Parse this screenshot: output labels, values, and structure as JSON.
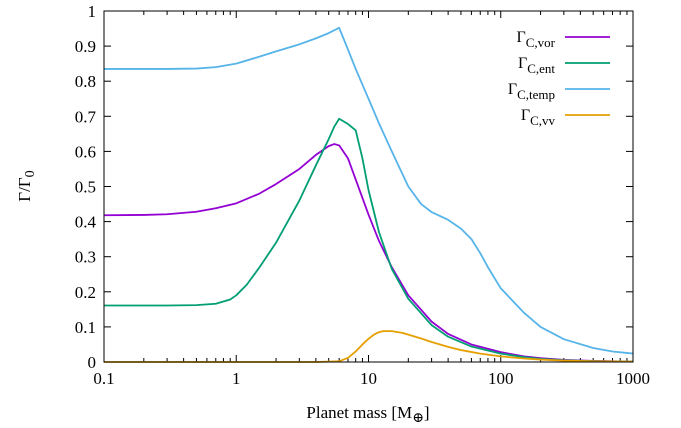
{
  "chart_data": {
    "type": "line",
    "xlabel": "Planet mass [M",
    "xlabel_sub": "⊕",
    "xlabel_close": "]",
    "ylabel": "Γ/Γ",
    "ylabel_sub": "0",
    "x_scale": "log",
    "xlim": [
      0.1,
      1000
    ],
    "ylim": [
      0,
      1
    ],
    "grid": false,
    "legend_position": "top-right",
    "x_ticks": [
      {
        "value": 0.1,
        "label": "0.1"
      },
      {
        "value": 1,
        "label": "1"
      },
      {
        "value": 10,
        "label": "10"
      },
      {
        "value": 100,
        "label": "100"
      },
      {
        "value": 1000,
        "label": "1000"
      }
    ],
    "y_ticks": [
      {
        "value": 0,
        "label": "0"
      },
      {
        "value": 0.1,
        "label": "0.1"
      },
      {
        "value": 0.2,
        "label": "0.2"
      },
      {
        "value": 0.3,
        "label": "0.3"
      },
      {
        "value": 0.4,
        "label": "0.4"
      },
      {
        "value": 0.5,
        "label": "0.5"
      },
      {
        "value": 0.6,
        "label": "0.6"
      },
      {
        "value": 0.7,
        "label": "0.7"
      },
      {
        "value": 0.8,
        "label": "0.8"
      },
      {
        "value": 0.9,
        "label": "0.9"
      },
      {
        "value": 1,
        "label": "1"
      }
    ],
    "series": [
      {
        "name": "Γ",
        "name_sub": "C,vor",
        "color": "#9400d3",
        "points": [
          [
            0.1,
            0.418
          ],
          [
            0.2,
            0.419
          ],
          [
            0.3,
            0.421
          ],
          [
            0.5,
            0.428
          ],
          [
            0.7,
            0.438
          ],
          [
            1,
            0.452
          ],
          [
            1.5,
            0.48
          ],
          [
            2,
            0.507
          ],
          [
            3,
            0.55
          ],
          [
            4,
            0.59
          ],
          [
            5,
            0.615
          ],
          [
            5.5,
            0.621
          ],
          [
            6,
            0.617
          ],
          [
            7,
            0.58
          ],
          [
            8,
            0.52
          ],
          [
            10,
            0.42
          ],
          [
            12,
            0.345
          ],
          [
            15,
            0.27
          ],
          [
            20,
            0.19
          ],
          [
            30,
            0.115
          ],
          [
            40,
            0.08
          ],
          [
            60,
            0.05
          ],
          [
            100,
            0.028
          ],
          [
            150,
            0.016
          ],
          [
            200,
            0.011
          ],
          [
            300,
            0.006
          ],
          [
            500,
            0.003
          ],
          [
            1000,
            0.001
          ]
        ]
      },
      {
        "name": "Γ",
        "name_sub": "C,ent",
        "color": "#009e73",
        "points": [
          [
            0.1,
            0.161
          ],
          [
            0.3,
            0.161
          ],
          [
            0.5,
            0.162
          ],
          [
            0.7,
            0.166
          ],
          [
            0.9,
            0.178
          ],
          [
            1,
            0.19
          ],
          [
            1.2,
            0.22
          ],
          [
            1.5,
            0.27
          ],
          [
            2,
            0.34
          ],
          [
            3,
            0.46
          ],
          [
            4,
            0.56
          ],
          [
            5,
            0.635
          ],
          [
            5.5,
            0.67
          ],
          [
            6,
            0.693
          ],
          [
            7,
            0.678
          ],
          [
            8,
            0.66
          ],
          [
            9,
            0.58
          ],
          [
            10,
            0.49
          ],
          [
            12,
            0.37
          ],
          [
            15,
            0.265
          ],
          [
            20,
            0.18
          ],
          [
            30,
            0.105
          ],
          [
            40,
            0.072
          ],
          [
            60,
            0.044
          ],
          [
            100,
            0.024
          ],
          [
            150,
            0.014
          ],
          [
            200,
            0.009
          ],
          [
            300,
            0.005
          ],
          [
            500,
            0.0025
          ],
          [
            1000,
            0.001
          ]
        ]
      },
      {
        "name": "Γ",
        "name_sub": "C,temp",
        "color": "#56b4e9",
        "points": [
          [
            0.1,
            0.835
          ],
          [
            0.3,
            0.835
          ],
          [
            0.5,
            0.836
          ],
          [
            0.7,
            0.84
          ],
          [
            1,
            0.85
          ],
          [
            1.5,
            0.87
          ],
          [
            2,
            0.885
          ],
          [
            3,
            0.905
          ],
          [
            4,
            0.922
          ],
          [
            5,
            0.937
          ],
          [
            6,
            0.952
          ],
          [
            7,
            0.89
          ],
          [
            8,
            0.835
          ],
          [
            10,
            0.75
          ],
          [
            12,
            0.68
          ],
          [
            15,
            0.6
          ],
          [
            20,
            0.5
          ],
          [
            25,
            0.45
          ],
          [
            30,
            0.427
          ],
          [
            40,
            0.405
          ],
          [
            50,
            0.38
          ],
          [
            60,
            0.35
          ],
          [
            70,
            0.31
          ],
          [
            80,
            0.27
          ],
          [
            100,
            0.21
          ],
          [
            150,
            0.14
          ],
          [
            200,
            0.1
          ],
          [
            300,
            0.065
          ],
          [
            500,
            0.04
          ],
          [
            700,
            0.03
          ],
          [
            1000,
            0.024
          ]
        ]
      },
      {
        "name": "Γ",
        "name_sub": "C,vv",
        "color": "#e69f00",
        "points": [
          [
            0.1,
            0
          ],
          [
            1,
            0
          ],
          [
            4,
            0
          ],
          [
            6,
            0.002
          ],
          [
            7,
            0.012
          ],
          [
            8,
            0.03
          ],
          [
            9,
            0.05
          ],
          [
            10,
            0.066
          ],
          [
            11,
            0.078
          ],
          [
            12,
            0.085
          ],
          [
            13,
            0.088
          ],
          [
            15,
            0.088
          ],
          [
            18,
            0.083
          ],
          [
            20,
            0.078
          ],
          [
            25,
            0.067
          ],
          [
            30,
            0.057
          ],
          [
            40,
            0.043
          ],
          [
            50,
            0.034
          ],
          [
            70,
            0.024
          ],
          [
            100,
            0.016
          ],
          [
            150,
            0.01
          ],
          [
            200,
            0.007
          ],
          [
            300,
            0.004
          ],
          [
            500,
            0.002
          ],
          [
            1000,
            0.001
          ]
        ]
      }
    ]
  }
}
